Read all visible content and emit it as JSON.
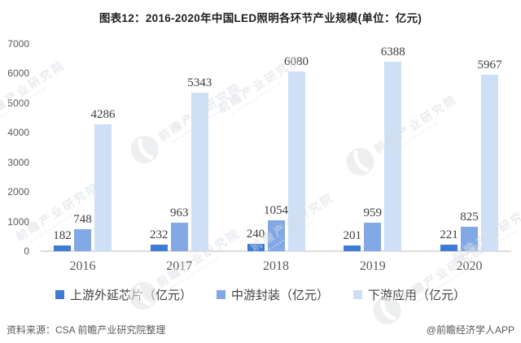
{
  "title": "图表12：2016-2020年中国LED照明各环节产业规模(单位：亿元)",
  "chart_data": {
    "type": "bar",
    "title": "图表12：2016-2020年中国LED照明各环节产业规模(单位：亿元)",
    "categories": [
      "2016",
      "2017",
      "2018",
      "2019",
      "2020"
    ],
    "series": [
      {
        "name": "上游外延芯片（亿元）",
        "color": "#3f7bd5",
        "values": [
          182,
          232,
          240,
          201,
          221
        ]
      },
      {
        "name": "中游封装（亿元）",
        "color": "#82a9e5",
        "values": [
          748,
          963,
          1054,
          959,
          825
        ]
      },
      {
        "name": "下游应用（亿元）",
        "color": "#cde0f5",
        "values": [
          4286,
          5343,
          6080,
          6388,
          5967
        ]
      }
    ],
    "ylim": [
      0,
      7000
    ],
    "yticks": [
      0,
      1000,
      2000,
      3000,
      4000,
      5000,
      6000,
      7000
    ],
    "grid": false,
    "legend_position": "bottom",
    "data_labels": true,
    "xlabel": "",
    "ylabel": ""
  },
  "footer": {
    "source": "资料来源：CSA 前瞻产业研究院整理",
    "credit": "@前瞻经济学人APP"
  },
  "watermark": {
    "text": "前瞻产业研究院"
  },
  "colors": {
    "axis_line": "#dcdcdc",
    "axis_label": "#595959",
    "value_label": "#3d3d3d",
    "legend_text": "#404040",
    "footer_text": "#595959",
    "watermark": "#d8dce2"
  }
}
